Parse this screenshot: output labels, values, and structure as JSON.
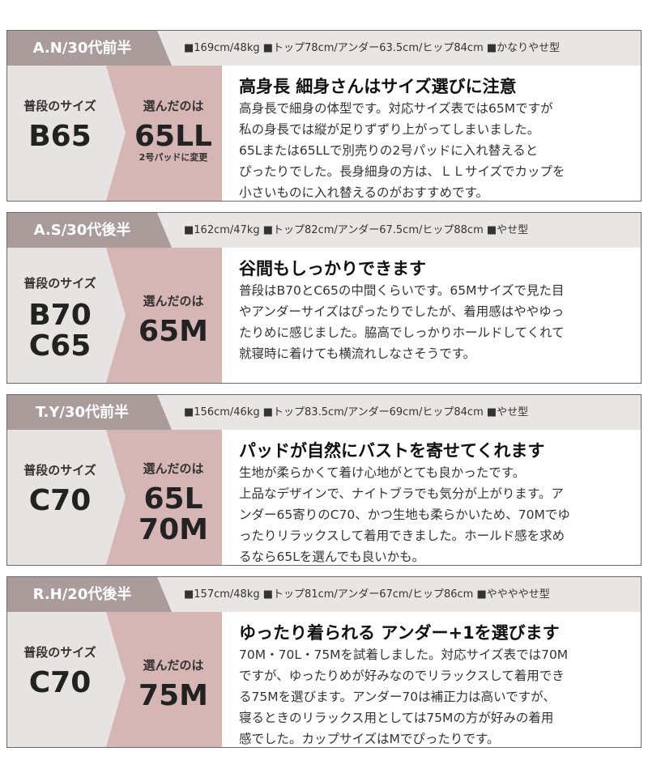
{
  "cards": [
    {
      "name": "A.N/30代前半",
      "specs": "■169cm/48kg ■トップ78cm/アンダー63.5cm/ヒップ84cm ■かなりやせ型",
      "usual_label": "普段のサイズ",
      "usual_size": [
        "B65"
      ],
      "chosen_label": "選んだのは",
      "chosen_size": [
        "65LL"
      ],
      "note": "2号パッドに変更",
      "title": "高身長 細身さんはサイズ選びに注意",
      "body": [
        "高身長で細身の体型です。対応サイズ表では65Mですが",
        "私の身長では縦が足りずずり上がってしまいました。",
        "65Lまたは65LLで別売りの2号パッドに入れ替えると",
        "ぴったりでした。長身細身の方は、ＬＬサイズでカップを",
        "小さいものに入れ替えるのがおすすめです。"
      ]
    },
    {
      "name": "A.S/30代後半",
      "specs": "■162cm/47kg ■トップ82cm/アンダー67.5cm/ヒップ88cm ■やせ型",
      "usual_label": "普段のサイズ",
      "usual_size": [
        "B70",
        "C65"
      ],
      "chosen_label": "選んだのは",
      "chosen_size": [
        "65M"
      ],
      "title": "谷間もしっかりできます",
      "body": [
        "普段はB70とC65の中間くらいです。65Mサイズで見た目",
        "やアンダーサイズはぴったりでしたが、着用感はややゆっ",
        "たりめに感じました。脇高でしっかりホールドしてくれて",
        "就寝時に着けても横流れしなさそうです。"
      ]
    },
    {
      "name": "T.Y/30代前半",
      "specs": "■156cm/46kg ■トップ83.5cm/アンダー69cm/ヒップ84cm ■やせ型",
      "usual_label": "普段のサイズ",
      "usual_size": [
        "C70"
      ],
      "chosen_label": "選んだのは",
      "chosen_size": [
        "65L",
        "70M"
      ],
      "title": "パッドが自然にバストを寄せてくれます",
      "body": [
        "生地が柔らかくて着け心地がとても良かったです。",
        "上品なデザインで、ナイトブラでも気分が上がります。ア",
        "ンダー65寄りのC70、かつ生地も柔らかいため、70Mでゆ",
        "ったりリラックスして着用できました。ホールド感を求め",
        "るなら65Lを選んでも良いかも。"
      ]
    },
    {
      "name": "R.H/20代後半",
      "specs": "■157cm/48kg ■トップ81cm/アンダー67cm/ヒップ86cm ■ややややせ型",
      "usual_label": "普段のサイズ",
      "usual_size": [
        "C70"
      ],
      "chosen_label": "選んだのは",
      "chosen_size": [
        "75M"
      ],
      "title": "ゆったり着られる アンダー+1を選びます",
      "body": [
        "70M・70L・75Mを試着しました。対応サイズ表では70M",
        "ですが、ゆったりめが好みなのでリラックスして着用でき",
        "る75Mを選びます。アンダー70は補正力は高いですが、",
        "寝るときのリラックス用としては75Mの方が好みの着用",
        "感でした。カップサイズはMでぴったりです。"
      ]
    }
  ]
}
